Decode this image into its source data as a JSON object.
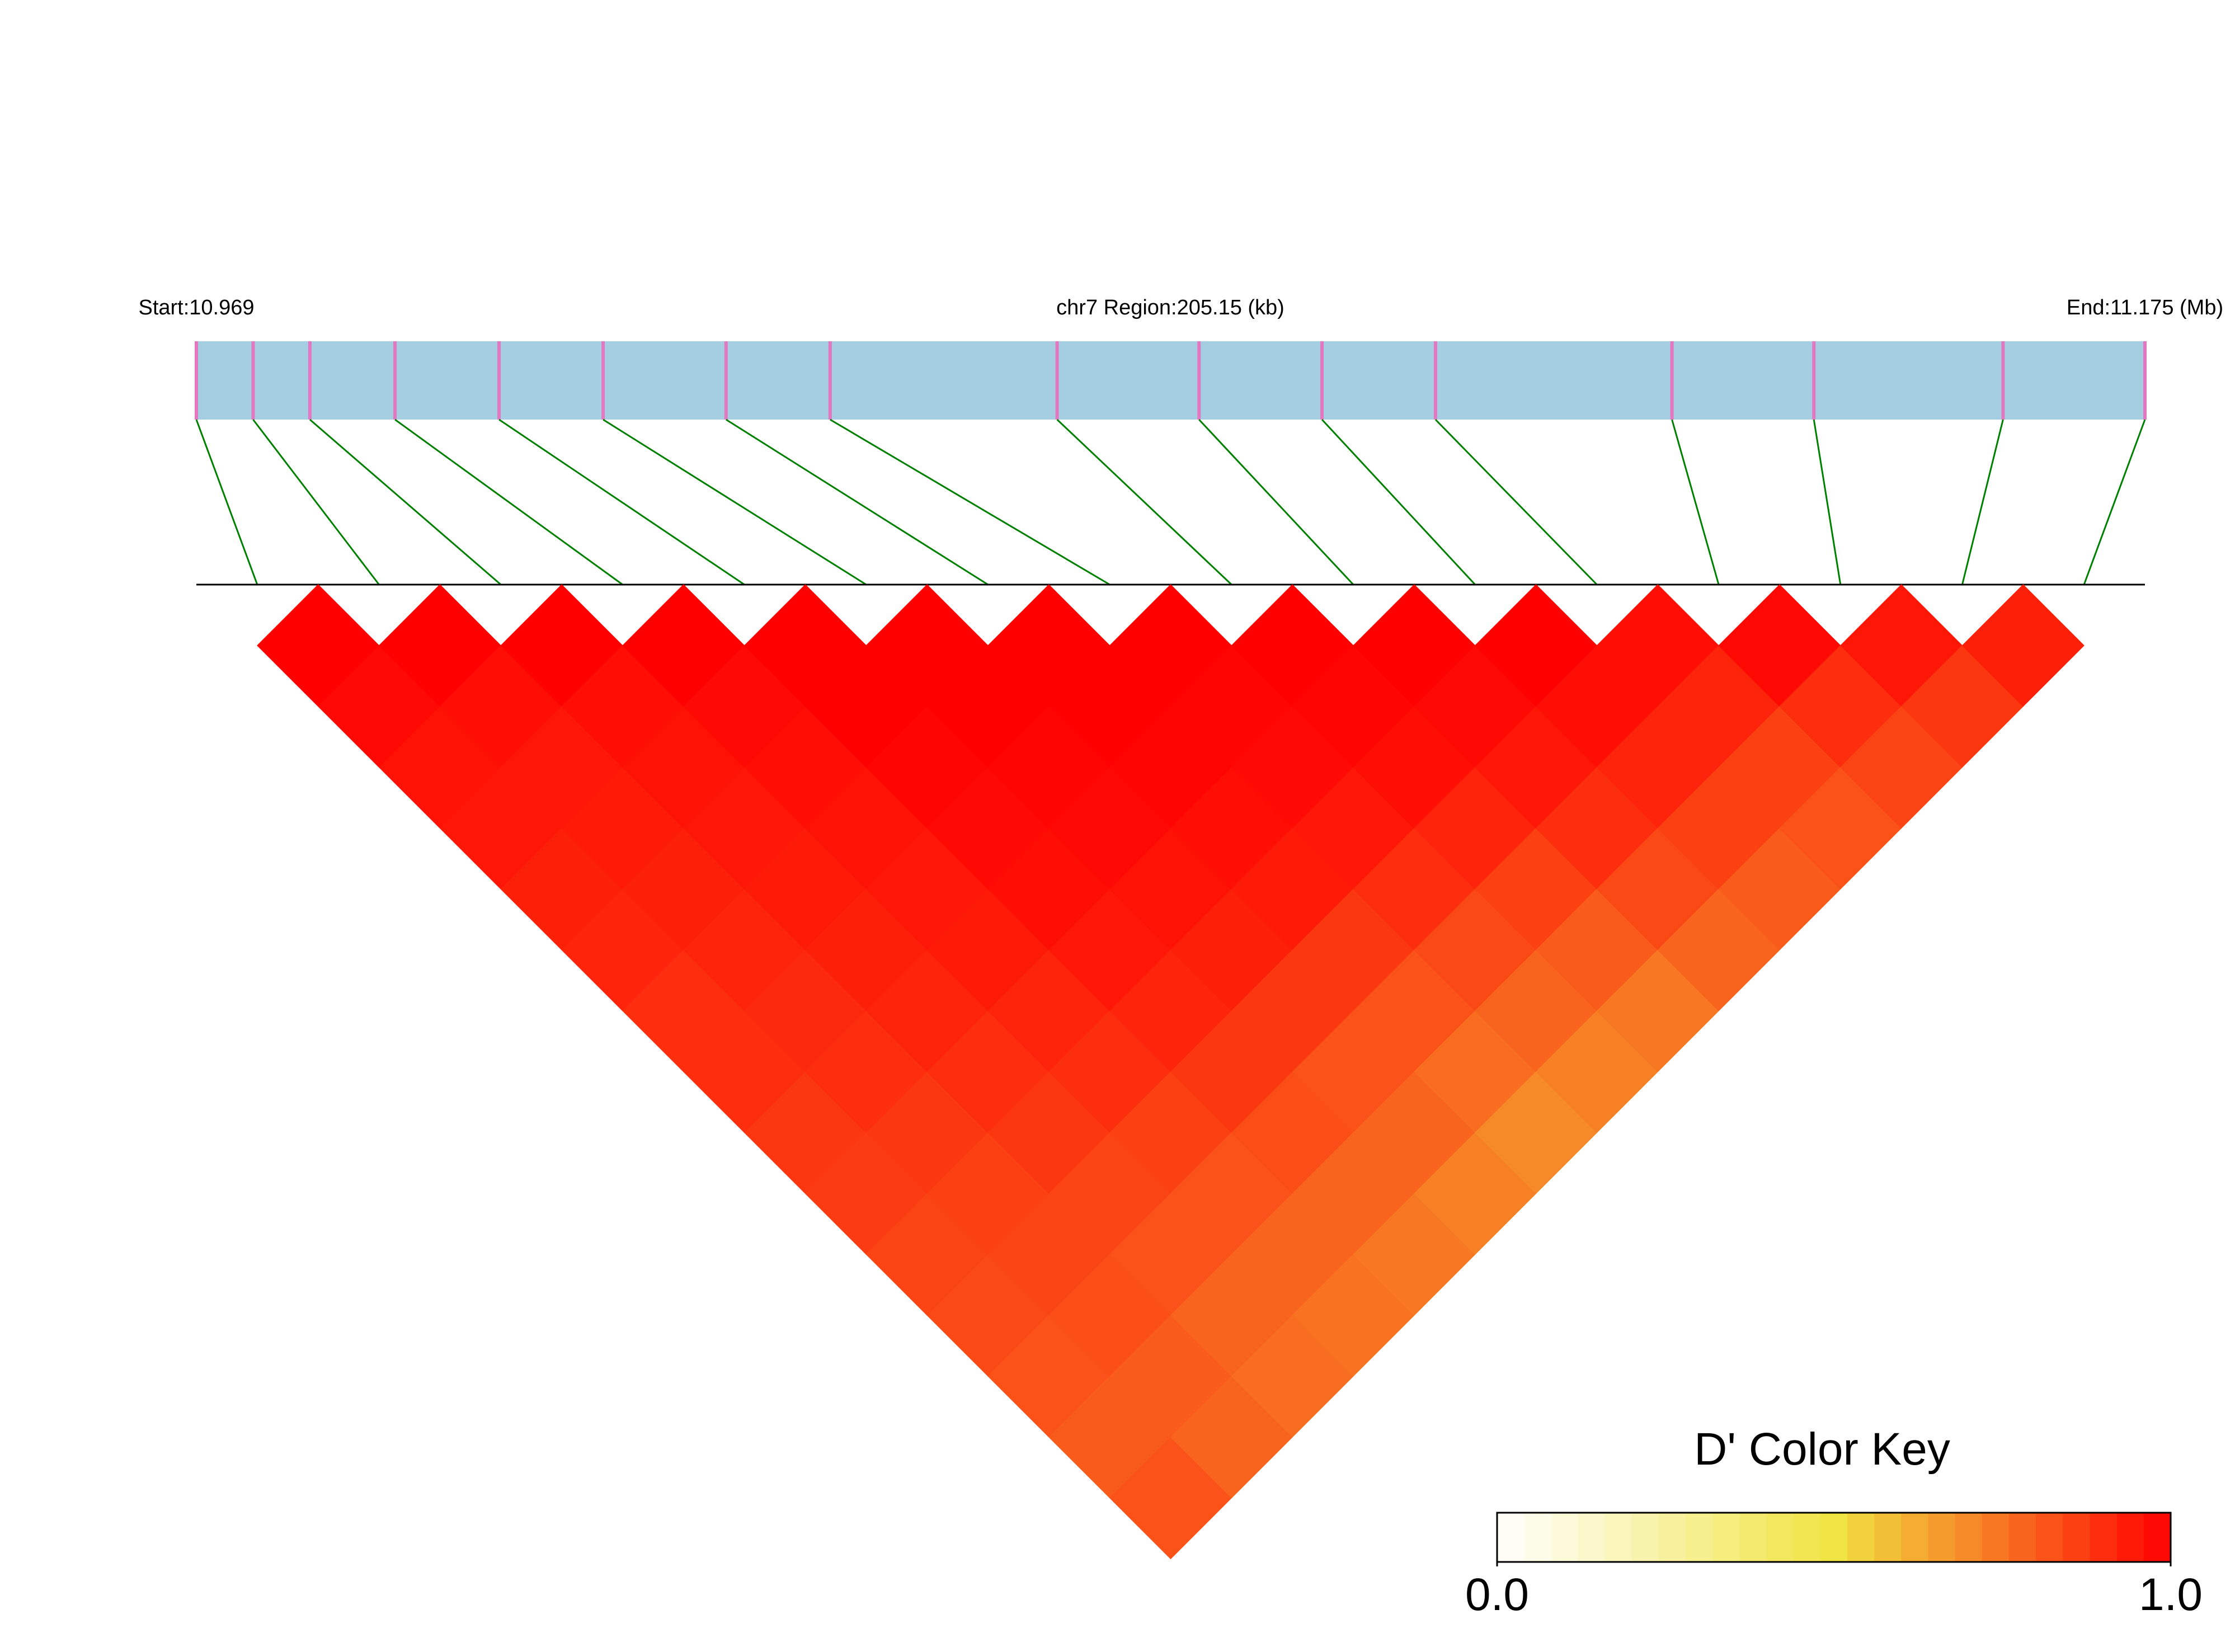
{
  "chart_data": {
    "type": "ld_heatmap",
    "start_label": "Start:10.969",
    "region_label": "chr7 Region:205.15 (kb)",
    "end_label": "End:11.175 (Mb)",
    "xlim": [
      10.969,
      11.175
    ],
    "snp_positions": [
      10.969,
      10.975,
      10.981,
      10.99,
      11.001,
      11.012,
      11.025,
      11.036,
      11.06,
      11.075,
      11.088,
      11.1,
      11.125,
      11.14,
      11.16,
      11.175
    ],
    "dprime": [
      [
        1.0,
        0.98,
        0.96,
        0.95,
        0.93,
        0.92,
        0.9,
        0.9,
        0.88,
        0.87,
        0.85,
        0.84,
        0.82,
        0.8,
        0.82
      ],
      [
        1.0,
        0.97,
        0.95,
        0.94,
        0.93,
        0.92,
        0.91,
        0.9,
        0.88,
        0.86,
        0.85,
        0.83,
        0.8,
        0.78
      ],
      [
        1.0,
        0.97,
        0.96,
        0.95,
        0.94,
        0.93,
        0.92,
        0.9,
        0.88,
        0.85,
        0.82,
        0.78,
        0.76
      ],
      [
        1.0,
        0.98,
        0.97,
        0.96,
        0.95,
        0.94,
        0.92,
        0.9,
        0.86,
        0.82,
        0.78,
        0.75
      ],
      [
        1.0,
        1.0,
        0.99,
        0.98,
        0.97,
        0.95,
        0.92,
        0.88,
        0.83,
        0.78,
        0.74
      ],
      [
        1.0,
        1.0,
        0.99,
        0.98,
        0.96,
        0.93,
        0.88,
        0.82,
        0.78,
        0.72
      ],
      [
        1.0,
        1.0,
        0.99,
        0.97,
        0.94,
        0.88,
        0.82,
        0.76,
        0.7
      ],
      [
        1.0,
        0.99,
        0.98,
        0.95,
        0.9,
        0.84,
        0.78,
        0.72
      ],
      [
        1.0,
        0.99,
        0.97,
        0.92,
        0.86,
        0.8,
        0.74
      ],
      [
        1.0,
        0.98,
        0.95,
        0.9,
        0.84,
        0.78
      ],
      [
        1.0,
        0.97,
        0.92,
        0.86,
        0.8
      ],
      [
        0.97,
        0.92,
        0.86,
        0.82
      ],
      [
        0.98,
        0.9,
        0.85
      ],
      [
        0.95,
        0.88
      ],
      [
        0.93
      ]
    ],
    "colormap": [
      "#ffffff",
      "#f0e442",
      "#ff0000"
    ],
    "bar_color": "#a6cee3",
    "snp_color": "#e377c2",
    "link_color": "#008000",
    "color_key": {
      "title": "D' Color Key",
      "lim": [
        0,
        1
      ],
      "ticks": [
        {
          "value": 0,
          "label": "0.0"
        },
        {
          "value": 1,
          "label": "1.0"
        }
      ]
    }
  }
}
